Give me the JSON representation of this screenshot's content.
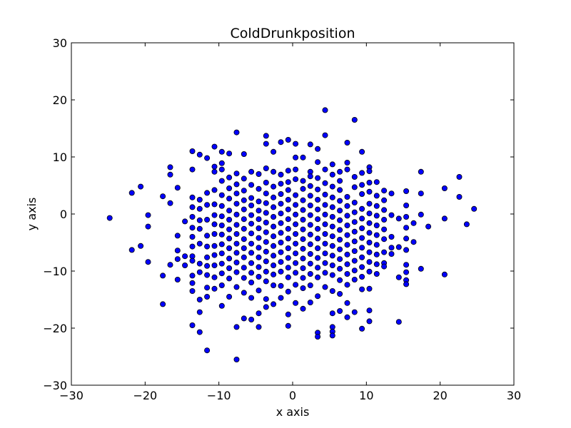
{
  "chart_data": {
    "type": "scatter",
    "title": "ColdDrunkposition",
    "xlabel": "x axis",
    "ylabel": "y axis",
    "xlim": [
      -30,
      30
    ],
    "ylim": [
      -30,
      30
    ],
    "xticks": [
      -30,
      -20,
      -10,
      0,
      10,
      20,
      30
    ],
    "yticks": [
      -30,
      -20,
      -10,
      0,
      10,
      20,
      30
    ],
    "xtick_labels": [
      "−30",
      "−20",
      "−10",
      "0",
      "10",
      "20",
      "30"
    ],
    "ytick_labels": [
      "−30",
      "−20",
      "−10",
      "0",
      "10",
      "20",
      "30"
    ],
    "grid": false,
    "marker_color": "#0000ff",
    "marker_edge_color": "#000000",
    "points": [
      [
        -24.8,
        -0.7
      ],
      [
        -21.8,
        3.7
      ],
      [
        -21.8,
        -6.3
      ],
      [
        -20.6,
        4.8
      ],
      [
        -20.6,
        -5.6
      ],
      [
        -19.6,
        -0.2
      ],
      [
        -19.6,
        -2.2
      ],
      [
        -19.6,
        -8.4
      ],
      [
        -17.6,
        3.1
      ],
      [
        -17.6,
        -10.8
      ],
      [
        -17.6,
        -15.8
      ],
      [
        -16.6,
        8.2
      ],
      [
        -16.6,
        6.9
      ],
      [
        -16.6,
        1.9
      ],
      [
        -16.6,
        -8.9
      ],
      [
        -15.6,
        4.6
      ],
      [
        -15.6,
        -3.8
      ],
      [
        -15.6,
        -6.4
      ],
      [
        -15.6,
        -7.9
      ],
      [
        -15.6,
        -11.5
      ],
      [
        -14.6,
        -1.3
      ],
      [
        -14.6,
        -7.4
      ],
      [
        -14.6,
        -9.0
      ],
      [
        -13.6,
        11.0
      ],
      [
        -13.6,
        7.8
      ],
      [
        -13.6,
        2.9
      ],
      [
        -13.6,
        1.2
      ],
      [
        -13.6,
        -0.5
      ],
      [
        -13.6,
        -2.4
      ],
      [
        -13.6,
        -4.0
      ],
      [
        -13.6,
        -5.7
      ],
      [
        -13.6,
        -7.4
      ],
      [
        -13.6,
        -8.2
      ],
      [
        -13.6,
        -10.8
      ],
      [
        -13.6,
        -12.1
      ],
      [
        -13.6,
        -13.5
      ],
      [
        -13.6,
        -19.5
      ],
      [
        -12.6,
        10.4
      ],
      [
        -12.6,
        2.5
      ],
      [
        -12.6,
        0.9
      ],
      [
        -12.6,
        -1.1
      ],
      [
        -12.6,
        -2.6
      ],
      [
        -12.6,
        -5.2
      ],
      [
        -12.6,
        -8.7
      ],
      [
        -12.6,
        -10.2
      ],
      [
        -12.6,
        -15.0
      ],
      [
        -12.6,
        -17.2
      ],
      [
        -12.6,
        -20.7
      ],
      [
        -11.6,
        9.8
      ],
      [
        -11.6,
        3.7
      ],
      [
        -11.6,
        1.6
      ],
      [
        -11.6,
        -1.0
      ],
      [
        -11.6,
        -3.8
      ],
      [
        -11.6,
        -5.7
      ],
      [
        -11.6,
        -7.6
      ],
      [
        -11.6,
        -9.1
      ],
      [
        -11.6,
        -10.7
      ],
      [
        -11.6,
        -12.9
      ],
      [
        -11.6,
        -14.5
      ],
      [
        -11.6,
        -23.9
      ],
      [
        -10.6,
        11.8
      ],
      [
        -10.6,
        8.3
      ],
      [
        -10.6,
        7.4
      ],
      [
        -10.6,
        4.2
      ],
      [
        -10.6,
        1.7
      ],
      [
        -10.6,
        -0.2
      ],
      [
        -10.6,
        -1.8
      ],
      [
        -10.6,
        -3.5
      ],
      [
        -10.6,
        -5.6
      ],
      [
        -10.6,
        -7.2
      ],
      [
        -10.6,
        -9.0
      ],
      [
        -10.6,
        -11.1
      ],
      [
        -10.6,
        -13.1
      ],
      [
        -9.6,
        10.9
      ],
      [
        -9.6,
        8.9
      ],
      [
        -9.6,
        7.8
      ],
      [
        -9.6,
        5.8
      ],
      [
        -9.6,
        3.3
      ],
      [
        -9.6,
        1.4
      ],
      [
        -9.6,
        -0.4
      ],
      [
        -9.6,
        -2.0
      ],
      [
        -9.6,
        -3.6
      ],
      [
        -9.6,
        -5.3
      ],
      [
        -9.6,
        -6.9
      ],
      [
        -9.6,
        -8.7
      ],
      [
        -9.6,
        -10.4
      ],
      [
        -9.6,
        -12.5
      ],
      [
        -9.6,
        -16.1
      ],
      [
        -8.6,
        10.6
      ],
      [
        -8.6,
        6.4
      ],
      [
        -8.6,
        4.5
      ],
      [
        -8.6,
        2.7
      ],
      [
        -8.6,
        0.6
      ],
      [
        -8.6,
        -1.0
      ],
      [
        -8.6,
        -2.7
      ],
      [
        -8.6,
        -4.3
      ],
      [
        -8.6,
        -6.0
      ],
      [
        -8.6,
        -7.8
      ],
      [
        -8.6,
        -9.5
      ],
      [
        -8.6,
        -11.3
      ],
      [
        -8.6,
        -14.5
      ],
      [
        -7.6,
        14.3
      ],
      [
        -7.6,
        7.1
      ],
      [
        -7.6,
        5.2
      ],
      [
        -7.6,
        3.6
      ],
      [
        -7.6,
        1.8
      ],
      [
        -7.6,
        -0.1
      ],
      [
        -7.6,
        -1.9
      ],
      [
        -7.6,
        -3.5
      ],
      [
        -7.6,
        -5.2
      ],
      [
        -7.6,
        -6.8
      ],
      [
        -7.6,
        -8.5
      ],
      [
        -7.6,
        -10.2
      ],
      [
        -7.6,
        -12.8
      ],
      [
        -7.6,
        -19.8
      ],
      [
        -7.6,
        -25.5
      ],
      [
        -6.6,
        10.5
      ],
      [
        -6.6,
        6.2
      ],
      [
        -6.6,
        4.1
      ],
      [
        -6.6,
        2.4
      ],
      [
        -6.6,
        0.8
      ],
      [
        -6.6,
        -0.9
      ],
      [
        -6.6,
        -2.6
      ],
      [
        -6.6,
        -4.4
      ],
      [
        -6.6,
        -6.0
      ],
      [
        -6.6,
        -7.6
      ],
      [
        -6.6,
        -9.4
      ],
      [
        -6.6,
        -11.2
      ],
      [
        -6.6,
        -13.8
      ],
      [
        -6.6,
        -18.3
      ],
      [
        -5.6,
        7.4
      ],
      [
        -5.6,
        5.1
      ],
      [
        -5.6,
        2.8
      ],
      [
        -5.6,
        1.5
      ],
      [
        -5.6,
        -0.2
      ],
      [
        -5.6,
        -1.7
      ],
      [
        -5.6,
        -3.4
      ],
      [
        -5.6,
        -5.2
      ],
      [
        -5.6,
        -6.8
      ],
      [
        -5.6,
        -8.6
      ],
      [
        -5.6,
        -10.3
      ],
      [
        -5.6,
        -12.0
      ],
      [
        -5.6,
        -14.7
      ],
      [
        -5.6,
        -18.5
      ],
      [
        -4.6,
        7.0
      ],
      [
        -4.6,
        4.4
      ],
      [
        -4.6,
        2.2
      ],
      [
        -4.6,
        0.6
      ],
      [
        -4.6,
        -0.9
      ],
      [
        -4.6,
        -2.5
      ],
      [
        -4.6,
        -4.2
      ],
      [
        -4.6,
        -5.9
      ],
      [
        -4.6,
        -7.6
      ],
      [
        -4.6,
        -9.3
      ],
      [
        -4.6,
        -11.0
      ],
      [
        -4.6,
        -13.4
      ],
      [
        -4.6,
        -17.4
      ],
      [
        -4.6,
        -19.8
      ],
      [
        -3.6,
        13.7
      ],
      [
        -3.6,
        12.3
      ],
      [
        -3.6,
        8.0
      ],
      [
        -3.6,
        5.5
      ],
      [
        -3.6,
        3.6
      ],
      [
        -3.6,
        1.9
      ],
      [
        -3.6,
        0.2
      ],
      [
        -3.6,
        -1.5
      ],
      [
        -3.6,
        -3.2
      ],
      [
        -3.6,
        -4.9
      ],
      [
        -3.6,
        -6.6
      ],
      [
        -3.6,
        -8.3
      ],
      [
        -3.6,
        -10.1
      ],
      [
        -3.6,
        -11.8
      ],
      [
        -3.6,
        -14.9
      ],
      [
        -3.6,
        -16.3
      ],
      [
        -2.6,
        10.9
      ],
      [
        -2.6,
        7.4
      ],
      [
        -2.6,
        4.8
      ],
      [
        -2.6,
        2.9
      ],
      [
        -2.6,
        1.2
      ],
      [
        -2.6,
        -0.5
      ],
      [
        -2.6,
        -2.2
      ],
      [
        -2.6,
        -3.9
      ],
      [
        -2.6,
        -5.6
      ],
      [
        -2.6,
        -7.3
      ],
      [
        -2.6,
        -9.0
      ],
      [
        -2.6,
        -10.6
      ],
      [
        -2.6,
        -12.5
      ],
      [
        -2.6,
        -15.8
      ],
      [
        -1.6,
        12.6
      ],
      [
        -1.6,
        6.9
      ],
      [
        -1.6,
        5.3
      ],
      [
        -1.6,
        3.5
      ],
      [
        -1.6,
        1.8
      ],
      [
        -1.6,
        0.1
      ],
      [
        -1.6,
        -1.6
      ],
      [
        -1.6,
        -3.3
      ],
      [
        -1.6,
        -5.0
      ],
      [
        -1.6,
        -6.7
      ],
      [
        -1.6,
        -8.4
      ],
      [
        -1.6,
        -10.1
      ],
      [
        -1.6,
        -12.6
      ],
      [
        -1.6,
        -14.7
      ],
      [
        -0.6,
        13.0
      ],
      [
        -0.6,
        7.6
      ],
      [
        -0.6,
        5.6
      ],
      [
        -0.6,
        4.2
      ],
      [
        -0.6,
        2.5
      ],
      [
        -0.6,
        0.8
      ],
      [
        -0.6,
        -0.9
      ],
      [
        -0.6,
        -2.6
      ],
      [
        -0.6,
        -4.3
      ],
      [
        -0.6,
        -6.0
      ],
      [
        -0.6,
        -7.7
      ],
      [
        -0.6,
        -9.4
      ],
      [
        -0.6,
        -11.1
      ],
      [
        -0.6,
        -13.6
      ],
      [
        -0.6,
        -17.6
      ],
      [
        -0.6,
        -19.6
      ],
      [
        0.4,
        12.3
      ],
      [
        0.4,
        9.9
      ],
      [
        0.4,
        7.8
      ],
      [
        0.4,
        6.1
      ],
      [
        0.4,
        3.3
      ],
      [
        0.4,
        1.6
      ],
      [
        0.4,
        -0.1
      ],
      [
        0.4,
        -1.8
      ],
      [
        0.4,
        -3.5
      ],
      [
        0.4,
        -5.2
      ],
      [
        0.4,
        -6.9
      ],
      [
        0.4,
        -8.6
      ],
      [
        0.4,
        -10.3
      ],
      [
        0.4,
        -12.4
      ],
      [
        0.4,
        -15.6
      ],
      [
        1.4,
        9.9
      ],
      [
        1.4,
        5.8
      ],
      [
        1.4,
        4.4
      ],
      [
        1.4,
        2.4
      ],
      [
        1.4,
        0.7
      ],
      [
        1.4,
        -1.0
      ],
      [
        1.4,
        -2.7
      ],
      [
        1.4,
        -4.4
      ],
      [
        1.4,
        -6.1
      ],
      [
        1.4,
        -7.8
      ],
      [
        1.4,
        -9.5
      ],
      [
        1.4,
        -11.2
      ],
      [
        1.4,
        -13.0
      ],
      [
        1.4,
        -16.6
      ],
      [
        2.4,
        12.2
      ],
      [
        2.4,
        7.4
      ],
      [
        2.4,
        6.6
      ],
      [
        2.4,
        4.9
      ],
      [
        2.4,
        3.2
      ],
      [
        2.4,
        1.5
      ],
      [
        2.4,
        -0.2
      ],
      [
        2.4,
        -1.9
      ],
      [
        2.4,
        -3.6
      ],
      [
        2.4,
        -5.3
      ],
      [
        2.4,
        -7.0
      ],
      [
        2.4,
        -8.7
      ],
      [
        2.4,
        -10.5
      ],
      [
        2.4,
        -12.5
      ],
      [
        2.4,
        -15.5
      ],
      [
        3.4,
        11.4
      ],
      [
        3.4,
        9.1
      ],
      [
        3.4,
        6.3
      ],
      [
        3.4,
        4.3
      ],
      [
        3.4,
        2.5
      ],
      [
        3.4,
        0.8
      ],
      [
        3.4,
        -0.9
      ],
      [
        3.4,
        -2.6
      ],
      [
        3.4,
        -4.3
      ],
      [
        3.4,
        -6.0
      ],
      [
        3.4,
        -7.7
      ],
      [
        3.4,
        -9.4
      ],
      [
        3.4,
        -11.1
      ],
      [
        3.4,
        -14.4
      ],
      [
        3.4,
        -20.8
      ],
      [
        3.4,
        -21.5
      ],
      [
        4.4,
        18.2
      ],
      [
        4.4,
        13.8
      ],
      [
        4.4,
        7.8
      ],
      [
        4.4,
        5.4
      ],
      [
        4.4,
        3.4
      ],
      [
        4.4,
        1.6
      ],
      [
        4.4,
        -0.1
      ],
      [
        4.4,
        -1.8
      ],
      [
        4.4,
        -3.5
      ],
      [
        4.4,
        -5.2
      ],
      [
        4.4,
        -6.9
      ],
      [
        4.4,
        -8.6
      ],
      [
        4.4,
        -10.3
      ],
      [
        4.4,
        -12.8
      ],
      [
        5.4,
        8.7
      ],
      [
        5.4,
        6.9
      ],
      [
        5.4,
        4.8
      ],
      [
        5.4,
        2.9
      ],
      [
        5.4,
        1.2
      ],
      [
        5.4,
        -0.5
      ],
      [
        5.4,
        -2.2
      ],
      [
        5.4,
        -3.9
      ],
      [
        5.4,
        -5.6
      ],
      [
        5.4,
        -7.3
      ],
      [
        5.4,
        -9.0
      ],
      [
        5.4,
        -10.7
      ],
      [
        5.4,
        -13.5
      ],
      [
        5.4,
        -17.4
      ],
      [
        5.4,
        -19.8
      ],
      [
        5.4,
        -20.6
      ],
      [
        5.4,
        -21.3
      ],
      [
        6.4,
        7.4
      ],
      [
        6.4,
        5.8
      ],
      [
        6.4,
        4.2
      ],
      [
        6.4,
        2.3
      ],
      [
        6.4,
        0.6
      ],
      [
        6.4,
        -1.1
      ],
      [
        6.4,
        -2.8
      ],
      [
        6.4,
        -4.5
      ],
      [
        6.4,
        -6.2
      ],
      [
        6.4,
        -7.9
      ],
      [
        6.4,
        -9.6
      ],
      [
        6.4,
        -11.6
      ],
      [
        6.4,
        -14.0
      ],
      [
        6.4,
        -17.0
      ],
      [
        7.4,
        12.5
      ],
      [
        7.4,
        9.0
      ],
      [
        7.4,
        7.8
      ],
      [
        7.4,
        3.0
      ],
      [
        7.4,
        1.4
      ],
      [
        7.4,
        -0.3
      ],
      [
        7.4,
        -2.0
      ],
      [
        7.4,
        -3.7
      ],
      [
        7.4,
        -5.4
      ],
      [
        7.4,
        -7.1
      ],
      [
        7.4,
        -8.8
      ],
      [
        7.4,
        -10.5
      ],
      [
        7.4,
        -12.4
      ],
      [
        7.4,
        -15.6
      ],
      [
        7.4,
        -18.1
      ],
      [
        8.4,
        16.5
      ],
      [
        8.4,
        6.5
      ],
      [
        8.4,
        4.7
      ],
      [
        8.4,
        2.0
      ],
      [
        8.4,
        0.3
      ],
      [
        8.4,
        -1.4
      ],
      [
        8.4,
        -3.1
      ],
      [
        8.4,
        -4.8
      ],
      [
        8.4,
        -6.5
      ],
      [
        8.4,
        -8.2
      ],
      [
        8.4,
        -9.9
      ],
      [
        8.4,
        -11.5
      ],
      [
        8.4,
        -17.2
      ],
      [
        9.4,
        10.9
      ],
      [
        9.4,
        7.2
      ],
      [
        9.4,
        5.1
      ],
      [
        9.4,
        3.5
      ],
      [
        9.4,
        0.9
      ],
      [
        9.4,
        -0.8
      ],
      [
        9.4,
        -2.5
      ],
      [
        9.4,
        -4.2
      ],
      [
        9.4,
        -5.9
      ],
      [
        9.4,
        -7.6
      ],
      [
        9.4,
        -9.3
      ],
      [
        9.4,
        -11.0
      ],
      [
        9.4,
        -13.2
      ],
      [
        9.4,
        -20.1
      ],
      [
        10.4,
        8.2
      ],
      [
        10.4,
        7.5
      ],
      [
        10.4,
        5.5
      ],
      [
        10.4,
        3.9
      ],
      [
        10.4,
        1.8
      ],
      [
        10.4,
        0.1
      ],
      [
        10.4,
        -1.6
      ],
      [
        10.4,
        -3.3
      ],
      [
        10.4,
        -5.0
      ],
      [
        10.4,
        -6.7
      ],
      [
        10.4,
        -8.4
      ],
      [
        10.4,
        -10.1
      ],
      [
        10.4,
        -13.1
      ],
      [
        10.4,
        -16.9
      ],
      [
        10.4,
        -18.8
      ],
      [
        11.4,
        5.6
      ],
      [
        11.4,
        3.2
      ],
      [
        11.4,
        1.4
      ],
      [
        11.4,
        -0.3
      ],
      [
        11.4,
        -2.0
      ],
      [
        11.4,
        -3.7
      ],
      [
        11.4,
        -5.4
      ],
      [
        11.4,
        -7.1
      ],
      [
        11.4,
        -8.8
      ],
      [
        11.4,
        -10.5
      ],
      [
        12.4,
        4.1
      ],
      [
        12.4,
        2.4
      ],
      [
        12.4,
        0.7
      ],
      [
        12.4,
        -1.0
      ],
      [
        12.4,
        -2.7
      ],
      [
        12.4,
        -4.4
      ],
      [
        12.4,
        -6.7
      ],
      [
        12.4,
        -8.6
      ],
      [
        12.4,
        -9.2
      ],
      [
        13.4,
        3.6
      ],
      [
        13.4,
        -0.2
      ],
      [
        13.4,
        -4.0
      ],
      [
        13.4,
        -5.9
      ],
      [
        13.4,
        -7.0
      ],
      [
        14.4,
        -0.8
      ],
      [
        14.4,
        -5.8
      ],
      [
        14.4,
        -11.1
      ],
      [
        14.4,
        -18.9
      ],
      [
        15.4,
        4.0
      ],
      [
        15.4,
        1.5
      ],
      [
        15.4,
        -0.5
      ],
      [
        15.4,
        -2.4
      ],
      [
        15.4,
        -4.3
      ],
      [
        15.4,
        -6.3
      ],
      [
        15.4,
        -8.9
      ],
      [
        15.4,
        -10.2
      ],
      [
        15.4,
        -11.6
      ],
      [
        15.4,
        -12.3
      ],
      [
        16.4,
        -1.6
      ],
      [
        16.4,
        -4.9
      ],
      [
        17.4,
        7.4
      ],
      [
        17.4,
        3.6
      ],
      [
        17.4,
        -0.1
      ],
      [
        17.4,
        -9.6
      ],
      [
        18.4,
        -2.2
      ],
      [
        20.6,
        4.5
      ],
      [
        20.6,
        -0.8
      ],
      [
        20.6,
        -10.6
      ],
      [
        22.6,
        6.5
      ],
      [
        22.6,
        3.0
      ],
      [
        23.6,
        -1.8
      ],
      [
        24.6,
        0.9
      ]
    ]
  }
}
